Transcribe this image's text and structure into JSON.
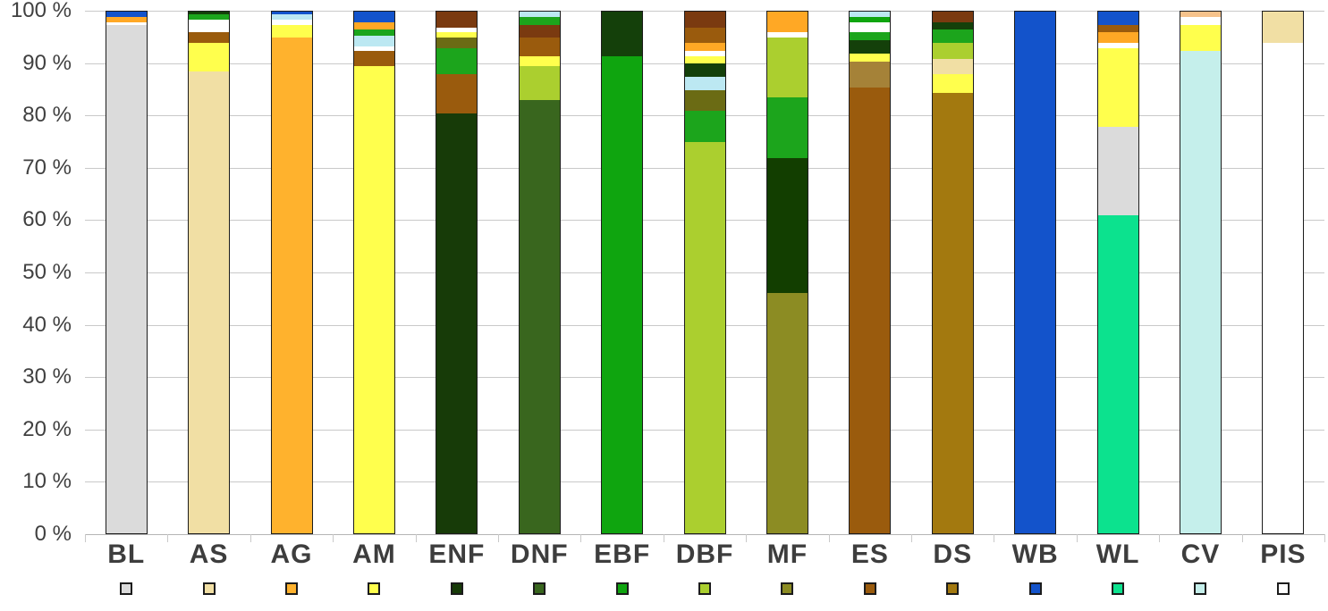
{
  "chart_data": {
    "type": "bar",
    "variant": "stacked-100-percent",
    "title": "",
    "xlabel": "",
    "ylabel": "",
    "unit": "%",
    "ylim": [
      0,
      100
    ],
    "grid": true,
    "legend_position": "below-category-labels",
    "ytick_labels": [
      "100 %",
      "90 %",
      "80 %",
      "70 %",
      "60 %",
      "50 %",
      "40 %",
      "30 %",
      "20 %",
      "10 %",
      "0 %"
    ],
    "categories": [
      "BL",
      "AS",
      "AG",
      "AM",
      "ENF",
      "DNF",
      "EBF",
      "DBF",
      "MF",
      "ES",
      "DS",
      "WB",
      "WL",
      "CV",
      "PIS"
    ],
    "bars": [
      {
        "label": "BL",
        "legend_color": "#DBDBDB",
        "segments": [
          [
            "#DBDBDB",
            97.5
          ],
          [
            "#FFFFFF",
            0.5
          ],
          [
            "#FFA825",
            1.0
          ],
          [
            "#1353CB",
            1.0
          ]
        ]
      },
      {
        "label": "AS",
        "legend_color": "#F1DFA4",
        "segments": [
          [
            "#F1DFA4",
            88.5
          ],
          [
            "#FFFF4D",
            5.5
          ],
          [
            "#9A5B0D",
            2.0
          ],
          [
            "#FFFFFF",
            2.5
          ],
          [
            "#1CA51C",
            1.0
          ],
          [
            "#14400A",
            0.5
          ]
        ]
      },
      {
        "label": "AG",
        "legend_color": "#FFB22D",
        "segments": [
          [
            "#FFB22D",
            95.0
          ],
          [
            "#FFFF4D",
            2.5
          ],
          [
            "#FFFFFF",
            1.0
          ],
          [
            "#BCE8F2",
            1.0
          ],
          [
            "#1353CB",
            0.5
          ]
        ]
      },
      {
        "label": "AM",
        "legend_color": "#FFFF4D",
        "segments": [
          [
            "#FFFF4D",
            89.5
          ],
          [
            "#9A5B0D",
            3.0
          ],
          [
            "#FFFFFF",
            0.8
          ],
          [
            "#BCE8F2",
            2.0
          ],
          [
            "#1CA51C",
            1.2
          ],
          [
            "#FFA825",
            1.5
          ],
          [
            "#1353CB",
            2.0
          ]
        ]
      },
      {
        "label": "ENF",
        "legend_color": "#173B08",
        "segments": [
          [
            "#173B08",
            80.5
          ],
          [
            "#9A5B0D",
            7.5
          ],
          [
            "#1CA51C",
            5.0
          ],
          [
            "#6B6B14",
            2.0
          ],
          [
            "#FFFF4D",
            1.0
          ],
          [
            "#FFFFFF",
            1.0
          ],
          [
            "#7A3A10",
            3.0
          ]
        ]
      },
      {
        "label": "DNF",
        "legend_color": "#39661E",
        "segments": [
          [
            "#39661E",
            83.0
          ],
          [
            "#ABCF2F",
            6.5
          ],
          [
            "#FFFF4D",
            2.0
          ],
          [
            "#9A5B0D",
            3.5
          ],
          [
            "#7A3A10",
            2.5
          ],
          [
            "#1CA51C",
            1.5
          ],
          [
            "#BCE8F2",
            1.0
          ]
        ]
      },
      {
        "label": "EBF",
        "legend_color": "#0FA50F",
        "segments": [
          [
            "#0FA50F",
            91.5
          ],
          [
            "#14400A",
            8.5
          ]
        ]
      },
      {
        "label": "DBF",
        "legend_color": "#ABCF2F",
        "segments": [
          [
            "#ABCF2F",
            75.0
          ],
          [
            "#1CA51C",
            6.0
          ],
          [
            "#6B6B14",
            4.0
          ],
          [
            "#BCE8F2",
            2.5
          ],
          [
            "#14400A",
            2.5
          ],
          [
            "#FFFF4D",
            1.5
          ],
          [
            "#FFFFFF",
            1.0
          ],
          [
            "#FFA825",
            1.5
          ],
          [
            "#9A5B0D",
            3.0
          ],
          [
            "#7A3A10",
            3.0
          ]
        ]
      },
      {
        "label": "MF",
        "legend_color": "#8C8C23",
        "segments": [
          [
            "#8C8C23",
            46.0
          ],
          [
            "#123E00",
            26.0
          ],
          [
            "#1CA51C",
            11.5
          ],
          [
            "#ABCF2F",
            11.5
          ],
          [
            "#FFFFFF",
            1.0
          ],
          [
            "#FFA825",
            4.0
          ]
        ]
      },
      {
        "label": "ES",
        "legend_color": "#9A5B0D",
        "segments": [
          [
            "#9A5B0D",
            85.5
          ],
          [
            "#A58238",
            5.0
          ],
          [
            "#FFFF4D",
            1.5
          ],
          [
            "#14400A",
            2.5
          ],
          [
            "#1CA51C",
            1.5
          ],
          [
            "#FFFFFF",
            2.0
          ],
          [
            "#0FA50F",
            1.0
          ],
          [
            "#BCE8F2",
            1.0
          ]
        ]
      },
      {
        "label": "DS",
        "legend_color": "#A3790F",
        "segments": [
          [
            "#A3790F",
            84.5
          ],
          [
            "#FFFF4D",
            3.5
          ],
          [
            "#F1DFA4",
            3.0
          ],
          [
            "#ABCF2F",
            3.0
          ],
          [
            "#1CA51C",
            2.5
          ],
          [
            "#14400A",
            1.5
          ],
          [
            "#7A3A10",
            2.0
          ]
        ]
      },
      {
        "label": "WB",
        "legend_color": "#1353CB",
        "segments": [
          [
            "#1353CB",
            100.0
          ]
        ]
      },
      {
        "label": "WL",
        "legend_color": "#0CE28E",
        "segments": [
          [
            "#0CE28E",
            61.0
          ],
          [
            "#DBDBDB",
            17.0
          ],
          [
            "#FFFF4D",
            15.0
          ],
          [
            "#FFFFFF",
            1.0
          ],
          [
            "#FFA825",
            2.0
          ],
          [
            "#9A5B0D",
            1.5
          ],
          [
            "#1353CB",
            2.5
          ]
        ]
      },
      {
        "label": "CV",
        "legend_color": "#C5EFEB",
        "segments": [
          [
            "#C5EFEB",
            92.5
          ],
          [
            "#FFFF4D",
            5.0
          ],
          [
            "#FFFFFF",
            1.5
          ],
          [
            "#F6C28B",
            1.0
          ]
        ]
      },
      {
        "label": "PIS",
        "legend_color": "#FFFFFF",
        "segments": [
          [
            "#FFFFFF",
            94.0
          ],
          [
            "#F1DFA4",
            6.0
          ]
        ]
      }
    ]
  }
}
